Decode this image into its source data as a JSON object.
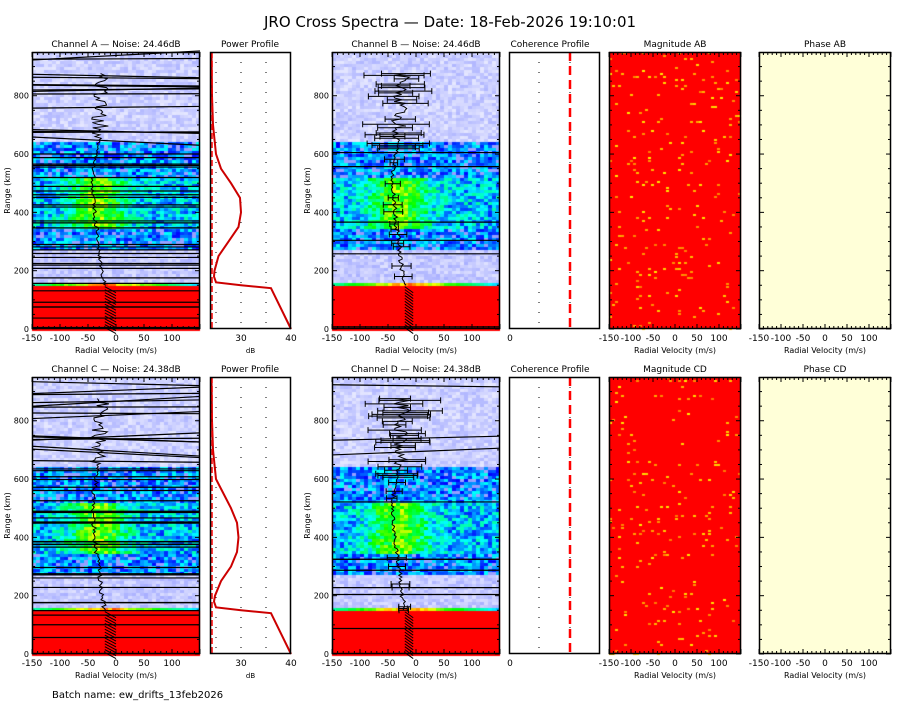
{
  "title": "JRO Cross Spectra — Date: 18-Feb-2026 19:10:01",
  "batch_label": "Batch name: ew_drifts_13feb2026",
  "colors": {
    "saturated": "#ff0000",
    "phase_bg": "#ffffd8",
    "profile": "#cc0000"
  },
  "chart_data": {
    "type": "heatmap",
    "range_ylabel": "Range (km)",
    "range_ylim": [
      0,
      950
    ],
    "range_ticks": [
      "0",
      "200",
      "400",
      "600",
      "800"
    ],
    "velocity_xlabel": "Radial Velocity (m/s)",
    "velocity_xlim": [
      -150,
      150
    ],
    "velocity_ticks": [
      "-150",
      "-100",
      "-50",
      "0",
      "50",
      "100"
    ],
    "power_xlabel": "dB",
    "power_xlim": [
      23.8,
      40
    ],
    "power_ticks": [
      "30",
      "40"
    ],
    "coherence_ticks": [
      "0"
    ],
    "rows": [
      {
        "spectra": [
          {
            "title": "Channel A — Noise: 24.46dB",
            "noise_db": 24.46
          },
          {
            "title": "Channel B — Noise: 24.46dB",
            "noise_db": 24.46
          }
        ],
        "power_title": "Power Profile",
        "coherence_title": "Coherence Profile",
        "magnitude_title": "Magnitude AB",
        "phase_title": "Phase AB",
        "power_profile": {
          "range_km": [
            0,
            140,
            150,
            160,
            180,
            200,
            250,
            300,
            350,
            400,
            450,
            500,
            550,
            600,
            700,
            800,
            950
          ],
          "db": [
            40,
            36,
            30,
            25,
            24.6,
            24.7,
            25.5,
            27.5,
            29.5,
            30,
            29.8,
            28,
            26,
            25,
            24.4,
            24.2,
            24.1
          ]
        }
      },
      {
        "spectra": [
          {
            "title": "Channel C — Noise: 24.38dB",
            "noise_db": 24.38
          },
          {
            "title": "Channel D — Noise: 24.38dB",
            "noise_db": 24.38
          }
        ],
        "power_title": "Power Profile",
        "coherence_title": "Coherence Profile",
        "magnitude_title": "Magnitude CD",
        "phase_title": "Phase CD",
        "power_profile": {
          "range_km": [
            0,
            140,
            150,
            160,
            180,
            200,
            250,
            300,
            350,
            400,
            450,
            500,
            550,
            600,
            700,
            800,
            950
          ],
          "db": [
            40,
            36,
            30,
            25,
            24.6,
            24.8,
            26,
            28,
            29.2,
            29.5,
            29.2,
            28,
            26.5,
            25,
            24.4,
            24.2,
            24.1
          ]
        }
      }
    ],
    "drift_profile": {
      "range_km": [
        150,
        200,
        250,
        300,
        350,
        400,
        450,
        500,
        550,
        600,
        650,
        700,
        750,
        800
      ],
      "velocity": [
        -20,
        -25,
        -28,
        -30,
        -35,
        -38,
        -40,
        -42,
        -40,
        -35,
        -30,
        -28,
        -30,
        -25
      ]
    }
  }
}
